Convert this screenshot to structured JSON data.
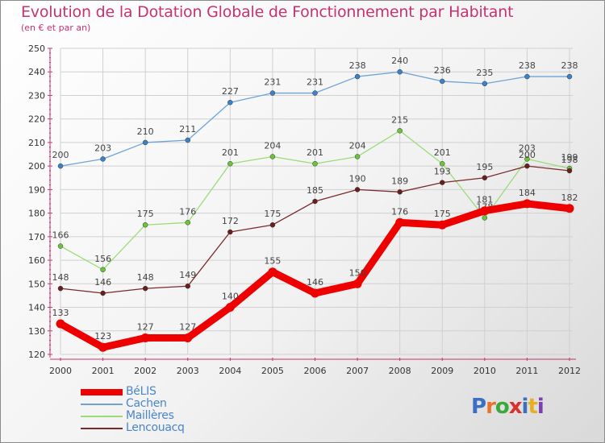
{
  "title": "Evolution de la Dotation Globale de Fonctionnement par Habitant",
  "subtitle": "(en € et par an)",
  "logo": {
    "text": "Proxiti",
    "colors": [
      "#3a6fc4",
      "#e8742b",
      "#3aa83a",
      "#d9312b",
      "#3a6fc4",
      "#e8b020",
      "#7a3fb0"
    ]
  },
  "chart_data": {
    "type": "line",
    "title": "Evolution de la Dotation Globale de Fonctionnement par Habitant",
    "subtitle": "(en € et par an)",
    "xlabel": "",
    "ylabel": "",
    "categories": [
      "2000",
      "2001",
      "2002",
      "2003",
      "2004",
      "2005",
      "2006",
      "2007",
      "2008",
      "2009",
      "2010",
      "2011",
      "2012"
    ],
    "ylim": [
      120,
      250
    ],
    "yticks": [
      120,
      130,
      140,
      150,
      160,
      170,
      180,
      190,
      200,
      210,
      220,
      230,
      240,
      250
    ],
    "grid": true,
    "legend_position": "bottom-left",
    "series": [
      {
        "name": "Cachen",
        "color": "#6fa3d8",
        "dot": "#3b82c9",
        "bold": false,
        "values": [
          200,
          203,
          210,
          211,
          227,
          231,
          231,
          238,
          240,
          236,
          235,
          238,
          238
        ]
      },
      {
        "name": "Maillères",
        "color": "#9bdc7a",
        "dot": "#6cc43a",
        "bold": false,
        "values": [
          166,
          156,
          175,
          176,
          201,
          204,
          201,
          204,
          215,
          201,
          178,
          203,
          199
        ]
      },
      {
        "name": "Lencouacq",
        "color": "#7a2a2a",
        "dot": "#6a1f1f",
        "bold": false,
        "values": [
          148,
          146,
          148,
          149,
          172,
          175,
          185,
          190,
          189,
          193,
          195,
          200,
          198
        ]
      },
      {
        "name": "BéLIS",
        "color": "#ee0000",
        "dot": "#ee0000",
        "bold": true,
        "values": [
          133,
          123,
          127,
          127,
          140,
          155,
          146,
          150,
          176,
          175,
          181,
          184,
          182
        ]
      }
    ],
    "legend_order": [
      "BéLIS",
      "Cachen",
      "Maillères",
      "Lencouacq"
    ]
  }
}
